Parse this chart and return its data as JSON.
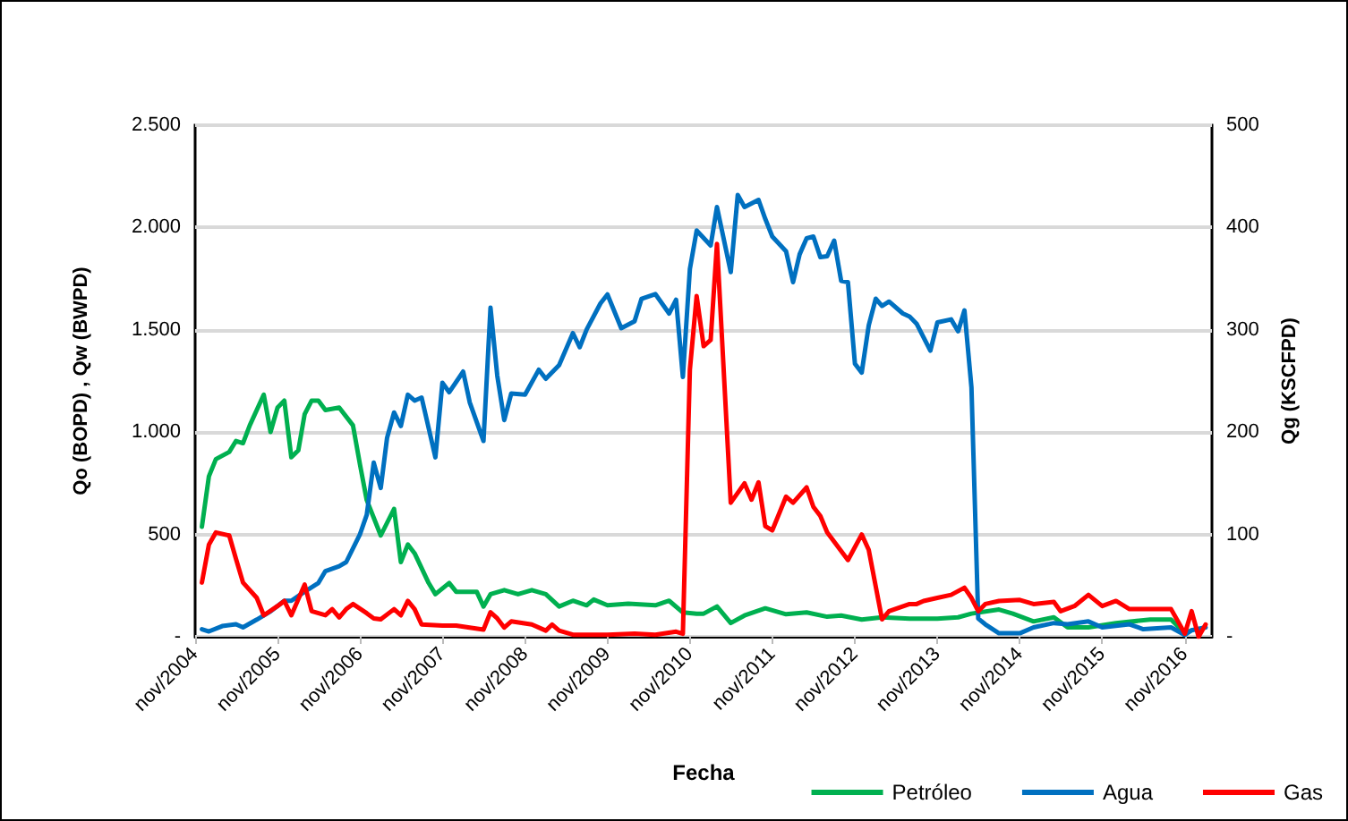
{
  "chart_data": {
    "type": "line",
    "xlabel": "Fecha",
    "ylabel": "Qo (BOPD) , Qw (BWPD)",
    "y2label": "Qg (KSCFPD)",
    "xlim": [
      "2004-11",
      "2017-03"
    ],
    "xticks": [
      {
        "value": "2004-11",
        "label": "nov/2004"
      },
      {
        "value": "2005-11",
        "label": "nov/2005"
      },
      {
        "value": "2006-11",
        "label": "nov/2006"
      },
      {
        "value": "2007-11",
        "label": "nov/2007"
      },
      {
        "value": "2008-11",
        "label": "nov/2008"
      },
      {
        "value": "2009-11",
        "label": "nov/2009"
      },
      {
        "value": "2010-11",
        "label": "nov/2010"
      },
      {
        "value": "2011-11",
        "label": "nov/2011"
      },
      {
        "value": "2012-11",
        "label": "nov/2012"
      },
      {
        "value": "2013-11",
        "label": "nov/2013"
      },
      {
        "value": "2014-11",
        "label": "nov/2014"
      },
      {
        "value": "2015-11",
        "label": "nov/2015"
      },
      {
        "value": "2016-11",
        "label": "nov/2016"
      }
    ],
    "ylim": [
      0,
      2500
    ],
    "yticks": [
      {
        "value": 0,
        "label": "-"
      },
      {
        "value": 500,
        "label": "500"
      },
      {
        "value": 1000,
        "label": "1.000"
      },
      {
        "value": 1500,
        "label": "1.500"
      },
      {
        "value": 2000,
        "label": "2.000"
      },
      {
        "value": 2500,
        "label": "2.500"
      }
    ],
    "y2lim": [
      0,
      500
    ],
    "y2ticks": [
      {
        "value": 0,
        "label": "-"
      },
      100,
      200,
      300,
      400,
      500
    ],
    "grid": "y",
    "legend": "bottom right",
    "marker": "none",
    "line_style": "solid",
    "series": [
      {
        "name": "Petróleo",
        "color": "#00b050",
        "x": [
          "2004-12",
          "2005-01",
          "2005-02",
          "2005-04",
          "2005-05",
          "2005-06",
          "2005-07",
          "2005-09",
          "2005-10",
          "2005-11",
          "2005-12",
          "2006-01",
          "2006-02",
          "2006-03",
          "2006-04",
          "2006-05",
          "2006-06",
          "2006-08",
          "2006-10",
          "2006-11",
          "2006-12",
          "2007-02",
          "2007-04",
          "2007-05",
          "2007-06",
          "2007-07",
          "2007-09",
          "2007-10",
          "2007-12",
          "2008-01",
          "2008-04",
          "2008-05",
          "2008-06",
          "2008-08",
          "2008-10",
          "2008-12",
          "2009-02",
          "2009-04",
          "2009-06",
          "2009-08",
          "2009-09",
          "2009-11",
          "2010-02",
          "2010-06",
          "2010-08",
          "2010-10",
          "2010-12",
          "2011-01",
          "2011-03",
          "2011-05",
          "2011-07",
          "2011-10",
          "2012-01",
          "2012-04",
          "2012-07",
          "2012-09",
          "2012-12",
          "2013-03",
          "2013-07",
          "2013-11",
          "2014-02",
          "2014-04",
          "2014-08",
          "2014-10",
          "2015-01",
          "2015-04",
          "2015-06",
          "2015-09",
          "2016-01",
          "2016-06",
          "2016-09",
          "2016-11",
          "2016-12"
        ],
        "values": [
          538,
          784,
          868,
          903,
          957,
          946,
          1033,
          1183,
          1001,
          1120,
          1154,
          877,
          911,
          1088,
          1154,
          1154,
          1108,
          1120,
          1033,
          842,
          668,
          495,
          625,
          365,
          451,
          408,
          263,
          208,
          263,
          220,
          220,
          148,
          208,
          228,
          208,
          228,
          208,
          148,
          176,
          154,
          182,
          154,
          162,
          154,
          176,
          119,
          113,
          113,
          148,
          67,
          104,
          139,
          110,
          119,
          98,
          104,
          84,
          95,
          89,
          89,
          95,
          113,
          133,
          113,
          75,
          95,
          46,
          46,
          67,
          84,
          84,
          17,
          32
        ]
      },
      {
        "name": "Agua",
        "color": "#0070c0",
        "x": [
          "2004-12",
          "2005-01",
          "2005-03",
          "2005-05",
          "2005-06",
          "2005-08",
          "2005-10",
          "2005-12",
          "2006-01",
          "2006-03",
          "2006-05",
          "2006-06",
          "2006-08",
          "2006-09",
          "2006-11",
          "2006-12",
          "2007-01",
          "2007-02",
          "2007-03",
          "2007-04",
          "2007-05",
          "2007-06",
          "2007-07",
          "2007-08",
          "2007-10",
          "2007-11",
          "2007-12",
          "2008-02",
          "2008-03",
          "2008-05",
          "2008-06",
          "2008-07",
          "2008-08",
          "2008-09",
          "2008-11",
          "2009-01",
          "2009-02",
          "2009-04",
          "2009-06",
          "2009-07",
          "2009-08",
          "2009-10",
          "2009-11",
          "2010-01",
          "2010-03",
          "2010-04",
          "2010-06",
          "2010-08",
          "2010-09",
          "2010-10",
          "2010-11",
          "2010-12",
          "2011-02",
          "2011-03",
          "2011-05",
          "2011-06",
          "2011-07",
          "2011-09",
          "2011-10",
          "2011-11",
          "2012-01",
          "2012-02",
          "2012-03",
          "2012-04",
          "2012-05",
          "2012-06",
          "2012-07",
          "2012-08",
          "2012-09",
          "2012-10",
          "2012-11",
          "2012-12",
          "2013-01",
          "2013-02",
          "2013-03",
          "2013-04",
          "2013-06",
          "2013-07",
          "2013-08",
          "2013-10",
          "2013-11",
          "2014-01",
          "2014-02",
          "2014-03",
          "2014-04",
          "2014-05",
          "2014-06",
          "2014-08",
          "2014-11",
          "2015-01",
          "2015-04",
          "2015-06",
          "2015-09",
          "2015-11",
          "2016-03",
          "2016-05",
          "2016-09",
          "2016-11",
          "2016-12",
          "2017-02"
        ],
        "values": [
          37,
          26,
          52,
          61,
          46,
          84,
          124,
          176,
          176,
          220,
          263,
          321,
          345,
          365,
          501,
          596,
          851,
          727,
          972,
          1096,
          1030,
          1183,
          1154,
          1169,
          877,
          1241,
          1195,
          1296,
          1146,
          957,
          1608,
          1276,
          1059,
          1189,
          1183,
          1305,
          1261,
          1328,
          1484,
          1415,
          1502,
          1629,
          1673,
          1508,
          1542,
          1652,
          1675,
          1580,
          1647,
          1270,
          1797,
          1985,
          1912,
          2100,
          1782,
          2159,
          2100,
          2135,
          2042,
          1956,
          1884,
          1733,
          1869,
          1947,
          1956,
          1855,
          1860,
          1936,
          1739,
          1733,
          1334,
          1291,
          1522,
          1652,
          1617,
          1638,
          1580,
          1565,
          1530,
          1398,
          1536,
          1551,
          1493,
          1595,
          1218,
          89,
          61,
          17,
          17,
          46,
          67,
          61,
          75,
          46,
          61,
          37,
          46,
          9,
          32,
          46
        ]
      },
      {
        "name": "Gas",
        "color": "#ff0000",
        "axis": "y2",
        "x": [
          "2004-12",
          "2005-01",
          "2005-02",
          "2005-04",
          "2005-05",
          "2005-06",
          "2005-08",
          "2005-09",
          "2005-11",
          "2005-12",
          "2006-01",
          "2006-03",
          "2006-04",
          "2006-06",
          "2006-07",
          "2006-08",
          "2006-09",
          "2006-10",
          "2006-12",
          "2007-01",
          "2007-02",
          "2007-04",
          "2007-05",
          "2007-06",
          "2007-07",
          "2007-08",
          "2007-11",
          "2008-01",
          "2008-03",
          "2008-05",
          "2008-06",
          "2008-07",
          "2008-08",
          "2008-09",
          "2008-12",
          "2009-02",
          "2009-03",
          "2009-04",
          "2009-06",
          "2009-11",
          "2010-03",
          "2010-06",
          "2010-09",
          "2010-10",
          "2010-11",
          "2010-12",
          "2011-01",
          "2011-02",
          "2011-03",
          "2011-05",
          "2011-07",
          "2011-08",
          "2011-09",
          "2011-10",
          "2011-11",
          "2012-01",
          "2012-02",
          "2012-04",
          "2012-05",
          "2012-06",
          "2012-07",
          "2012-10",
          "2012-12",
          "2013-01",
          "2013-03",
          "2013-04",
          "2013-07",
          "2013-08",
          "2013-09",
          "2013-11",
          "2014-01",
          "2014-03",
          "2014-04",
          "2014-05",
          "2014-06",
          "2014-08",
          "2014-11",
          "2015-01",
          "2015-04",
          "2015-05",
          "2015-07",
          "2015-09",
          "2015-11",
          "2016-01",
          "2016-03",
          "2016-09",
          "2016-11",
          "2016-12",
          "2017-01",
          "2017-02"
        ],
        "values": [
          53,
          90,
          102,
          99,
          76,
          53,
          38,
          21,
          30,
          35,
          21,
          51,
          25,
          21,
          27,
          19,
          27,
          32,
          23,
          18,
          17,
          27,
          21,
          35,
          27,
          12,
          11,
          11,
          9,
          7,
          24,
          18,
          9,
          15,
          12,
          6,
          12,
          6,
          2,
          2,
          3,
          2,
          5,
          3,
          261,
          333,
          284,
          290,
          384,
          131,
          150,
          134,
          151,
          108,
          104,
          137,
          131,
          146,
          127,
          118,
          102,
          75,
          100,
          85,
          17,
          25,
          32,
          32,
          35,
          38,
          41,
          48,
          38,
          25,
          32,
          35,
          36,
          32,
          34,
          25,
          30,
          41,
          30,
          35,
          27,
          27,
          3,
          25,
          0,
          12
        ]
      }
    ]
  }
}
